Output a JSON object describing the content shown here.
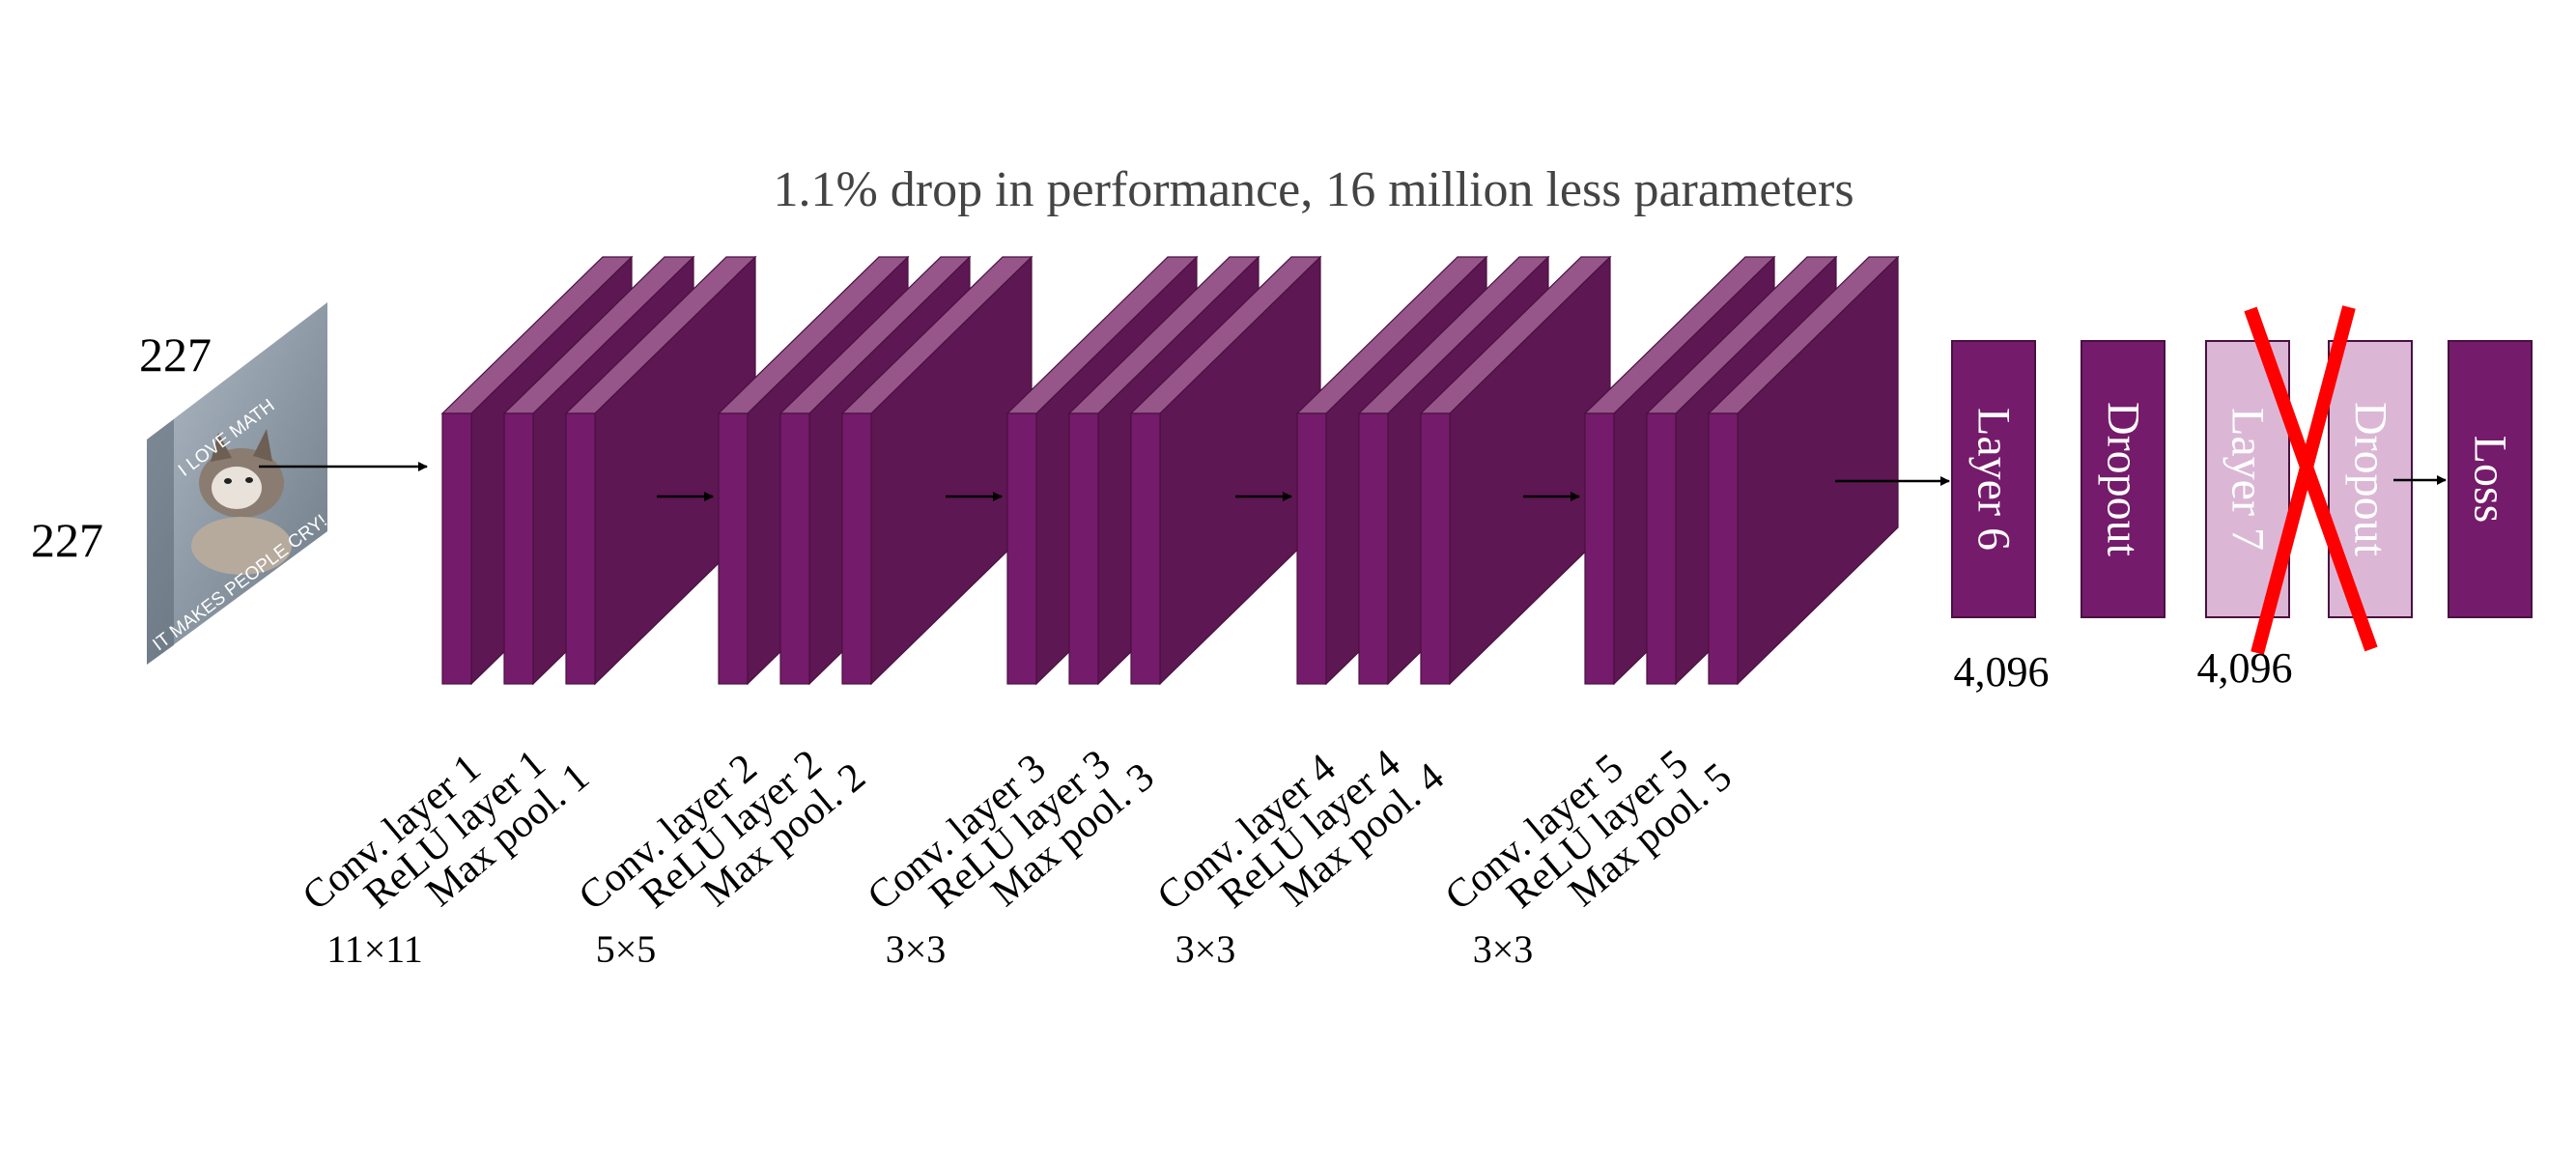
{
  "title": "1.1% drop in performance, 16 million less parameters",
  "input": {
    "width_label": "227",
    "height_label": "227",
    "caption_top": "I LOVE MATH",
    "caption_bottom": "IT MAKES PEOPLE CRY!"
  },
  "conv_blocks": [
    {
      "labels": [
        "Conv. layer 1",
        "ReLU layer 1",
        "Max pool. 1"
      ],
      "kernel": "11×11"
    },
    {
      "labels": [
        "Conv. layer 2",
        "ReLU layer 2",
        "Max pool. 2"
      ],
      "kernel": "5×5"
    },
    {
      "labels": [
        "Conv. layer 3",
        "ReLU layer 3",
        "Max pool. 3"
      ],
      "kernel": "3×3"
    },
    {
      "labels": [
        "Conv. layer 4",
        "ReLU layer 4",
        "Max pool. 4"
      ],
      "kernel": "3×3"
    },
    {
      "labels": [
        "Conv. layer 5",
        "ReLU layer 5",
        "Max pool. 5"
      ],
      "kernel": "3×3"
    }
  ],
  "fc_layers": [
    {
      "label": "Layer 6",
      "removed": false
    },
    {
      "label": "Dropout",
      "removed": false
    },
    {
      "label": "Layer 7",
      "removed": true
    },
    {
      "label": "Dropout",
      "removed": true
    },
    {
      "label": "Loss",
      "removed": false
    }
  ],
  "fc_counts": [
    "4,096",
    "4,096"
  ],
  "colors": {
    "layer_front": "#751b6b",
    "layer_side": "#5d1752",
    "layer_top": "#965689",
    "removed_fill": "#dbb7d5",
    "cross": "#ff0000",
    "arrow": "#000000"
  }
}
